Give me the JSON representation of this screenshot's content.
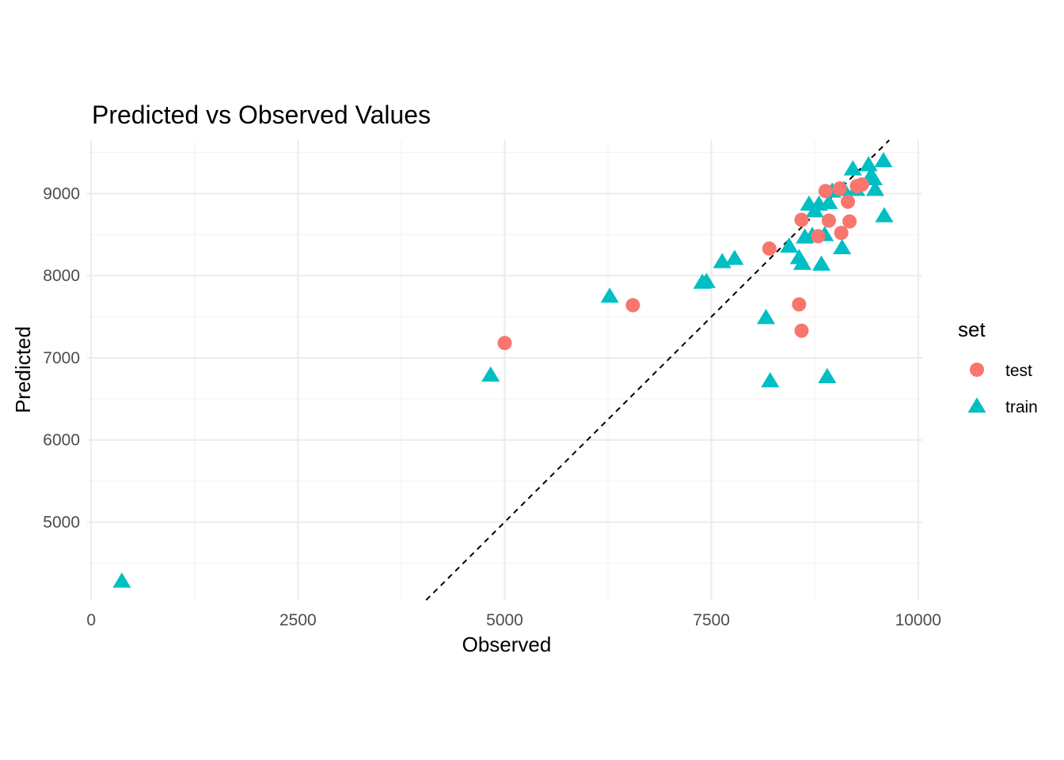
{
  "chart_data": {
    "type": "scatter",
    "title": "Predicted vs Observed Values",
    "xlabel": "Observed",
    "ylabel": "Predicted",
    "xlim": [
      -50,
      10050
    ],
    "ylim": [
      4050,
      9650
    ],
    "x_ticks": [
      0,
      2500,
      5000,
      7500,
      10000
    ],
    "y_ticks": [
      5000,
      6000,
      7000,
      8000,
      9000
    ],
    "grid": true,
    "reference_line": {
      "type": "identity",
      "style": "dashed"
    },
    "legend": {
      "title": "set",
      "placement": "right"
    },
    "series": [
      {
        "name": "test",
        "marker": "circle",
        "color": "#F8766D",
        "points": [
          [
            5000,
            7180
          ],
          [
            6550,
            7640
          ],
          [
            8200,
            8330
          ],
          [
            8560,
            7650
          ],
          [
            8590,
            7330
          ],
          [
            8590,
            8680
          ],
          [
            8790,
            8480
          ],
          [
            8880,
            9030
          ],
          [
            8920,
            8670
          ],
          [
            9050,
            9060
          ],
          [
            9070,
            8520
          ],
          [
            9150,
            8900
          ],
          [
            9170,
            8660
          ],
          [
            9260,
            9090
          ],
          [
            9320,
            9110
          ]
        ]
      },
      {
        "name": "train",
        "marker": "triangle",
        "color": "#00BFC4",
        "points": [
          [
            370,
            4280
          ],
          [
            4830,
            6790
          ],
          [
            6270,
            7750
          ],
          [
            7390,
            7920
          ],
          [
            7440,
            7930
          ],
          [
            7630,
            8170
          ],
          [
            7780,
            8210
          ],
          [
            8160,
            7490
          ],
          [
            8210,
            6720
          ],
          [
            8440,
            8360
          ],
          [
            8560,
            8220
          ],
          [
            8600,
            8150
          ],
          [
            8630,
            8470
          ],
          [
            8680,
            8870
          ],
          [
            8720,
            8490
          ],
          [
            8750,
            8790
          ],
          [
            8800,
            8870
          ],
          [
            8830,
            8140
          ],
          [
            8870,
            8500
          ],
          [
            8900,
            6770
          ],
          [
            8920,
            8890
          ],
          [
            8960,
            9030
          ],
          [
            9080,
            8340
          ],
          [
            9100,
            9050
          ],
          [
            9210,
            9300
          ],
          [
            9250,
            9050
          ],
          [
            9400,
            9350
          ],
          [
            9430,
            9220
          ],
          [
            9460,
            9180
          ],
          [
            9480,
            9050
          ],
          [
            9580,
            9400
          ],
          [
            9590,
            8730
          ]
        ]
      }
    ]
  }
}
